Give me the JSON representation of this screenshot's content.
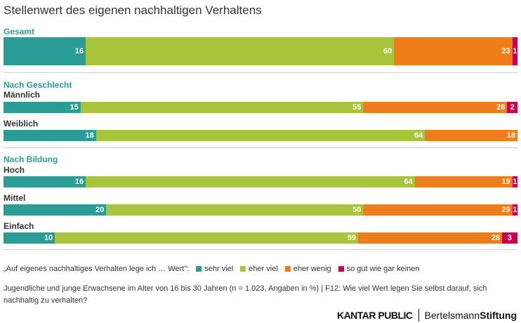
{
  "chart_data": {
    "type": "bar",
    "orientation": "horizontal-stacked",
    "title": "Stellenwert des eigenen nachhaltigen Verhaltens",
    "legend_prefix": "„Auf eigenes nachhaltiges Verhalten lege ich … Wert\":",
    "series": [
      {
        "name": "sehr viel",
        "color": "#2a9d96"
      },
      {
        "name": "eher viel",
        "color": "#a8c43a"
      },
      {
        "name": "eher wenig",
        "color": "#ee7d1a"
      },
      {
        "name": "so gut wie gar keinen",
        "color": "#c8004f"
      }
    ],
    "sections": [
      {
        "label": "Gesamt",
        "rows": [
          {
            "label": "",
            "values": [
              16,
              60,
              23,
              1
            ]
          }
        ]
      },
      {
        "label": "Nach Geschlecht",
        "rows": [
          {
            "label": "Männlich",
            "values": [
              15,
              55,
              28,
              2
            ]
          },
          {
            "label": "Weiblich",
            "values": [
              18,
              64,
              18,
              0
            ]
          }
        ]
      },
      {
        "label": "Nach Bildung",
        "rows": [
          {
            "label": "Hoch",
            "values": [
              16,
              64,
              19,
              1
            ]
          },
          {
            "label": "Mittel",
            "values": [
              20,
              50,
              29,
              1
            ]
          },
          {
            "label": "Einfach",
            "values": [
              10,
              59,
              28,
              3
            ]
          }
        ]
      }
    ],
    "xlim": [
      0,
      100
    ],
    "legend_position": "bottom"
  },
  "note": "Jugendliche und junge Erwachsene im Alter von 16 bis 30 Jahren (n = 1.023, Angaben in %) | F12: Wie viel Wert legen Sie selbst darauf, sich nachhaltig zu verhalten?",
  "logos": {
    "kantar": "KANTAR PUBLIC",
    "bertelsmann_a": "Bertelsmann",
    "bertelsmann_b": "Stiftung"
  }
}
